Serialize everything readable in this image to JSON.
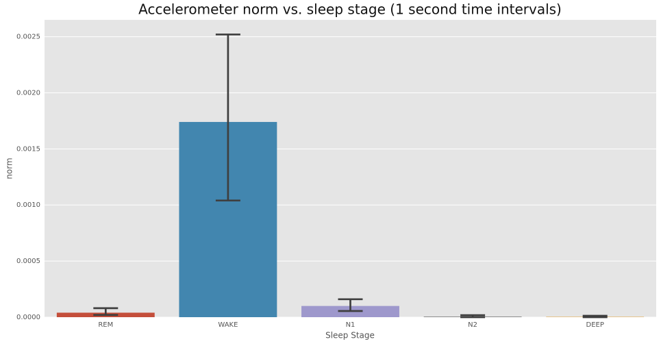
{
  "chart_data": {
    "type": "bar",
    "title": "Accelerometer norm vs. sleep stage (1 second time intervals)",
    "x_label": "Sleep Stage",
    "y_label": "norm",
    "categories": [
      "REM",
      "WAKE",
      "N1",
      "N2",
      "DEEP"
    ],
    "values": [
      4e-05,
      0.00174,
      0.0001,
      5e-06,
      4e-06
    ],
    "ci_low": [
      2e-05,
      0.00104,
      5.5e-05,
      0.0,
      0.0
    ],
    "ci_high": [
      8e-05,
      0.00252,
      0.00016,
      1.8e-05,
      1.2e-05
    ],
    "colors": [
      "#c44e3a",
      "#4286af",
      "#9e98cc",
      "#797979",
      "#e7b361"
    ],
    "error_color": "#3f3f3f",
    "ylim": [
      0,
      0.00265
    ],
    "yticks": [
      {
        "value": 0,
        "label": "0.0000"
      },
      {
        "value": 0.0005,
        "label": "0.0005"
      },
      {
        "value": 0.001,
        "label": "0.0010"
      },
      {
        "value": 0.0015,
        "label": "0.0015"
      },
      {
        "value": 0.002,
        "label": "0.0020"
      },
      {
        "value": 0.0025,
        "label": "0.0025"
      }
    ],
    "grid": true
  }
}
